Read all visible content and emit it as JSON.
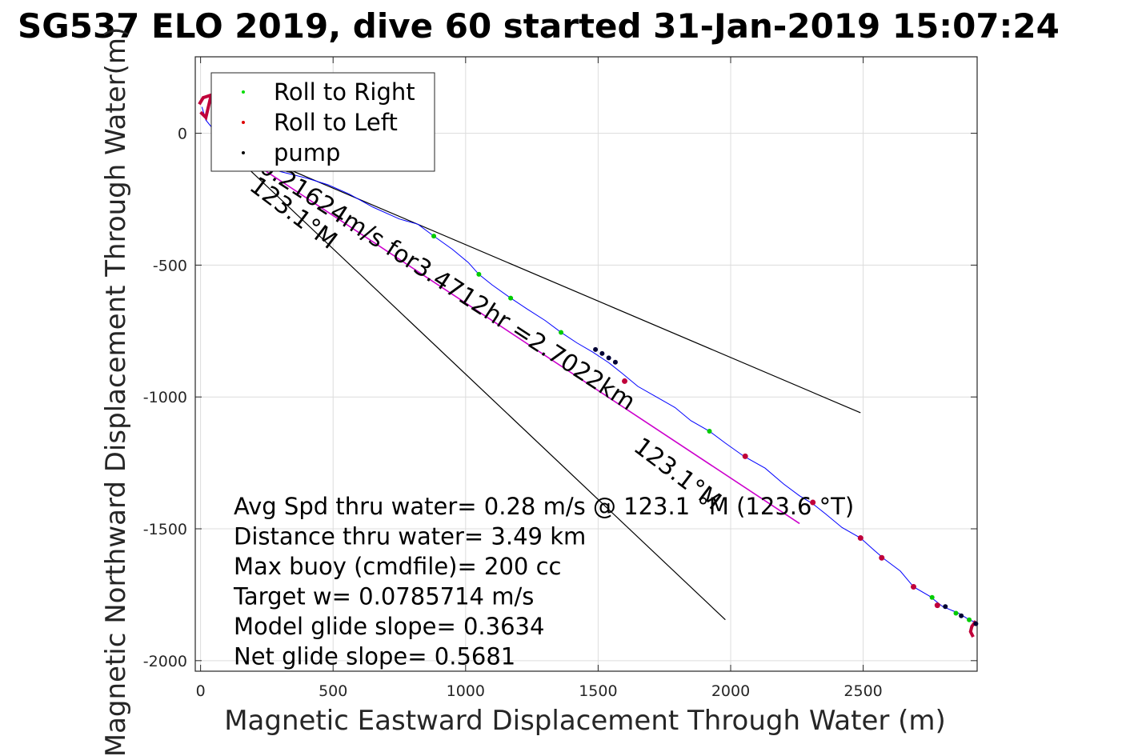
{
  "chart_data": {
    "type": "scatter",
    "title": "SG537 ELO 2019, dive 60 started 31-Jan-2019 15:07:24",
    "xlabel": "Magnetic Eastward Displacement Through Water (m)",
    "ylabel": "Magnetic Northward Displacement Through Water(m)",
    "xlim": [
      -20,
      2930
    ],
    "ylim": [
      -2040,
      290
    ],
    "xticks": [
      0,
      500,
      1000,
      1500,
      2000,
      2500
    ],
    "yticks": [
      0,
      -500,
      -1000,
      -1500,
      -2000
    ],
    "grid": true,
    "legend_position": "top-left",
    "legend": [
      {
        "label": "Roll to Right",
        "color": "#00dd00"
      },
      {
        "label": "Roll to Left",
        "color": "#dd0000"
      },
      {
        "label": "pump",
        "color": "#000000"
      }
    ],
    "track": {
      "color": "#0000ff",
      "points": [
        [
          5,
          100
        ],
        [
          20,
          50
        ],
        [
          60,
          0
        ],
        [
          120,
          -40
        ],
        [
          200,
          -100
        ],
        [
          300,
          -145
        ],
        [
          400,
          -170
        ],
        [
          480,
          -195
        ],
        [
          560,
          -230
        ],
        [
          650,
          -280
        ],
        [
          750,
          -325
        ],
        [
          820,
          -345
        ],
        [
          880,
          -390
        ],
        [
          950,
          -440
        ],
        [
          1010,
          -490
        ],
        [
          1050,
          -535
        ],
        [
          1100,
          -575
        ],
        [
          1170,
          -625
        ],
        [
          1230,
          -665
        ],
        [
          1300,
          -710
        ],
        [
          1360,
          -755
        ],
        [
          1420,
          -795
        ],
        [
          1480,
          -830
        ],
        [
          1540,
          -870
        ],
        [
          1590,
          -910
        ],
        [
          1650,
          -960
        ],
        [
          1720,
          -1000
        ],
        [
          1790,
          -1040
        ],
        [
          1850,
          -1090
        ],
        [
          1920,
          -1130
        ],
        [
          1980,
          -1175
        ],
        [
          2050,
          -1225
        ],
        [
          2130,
          -1270
        ],
        [
          2200,
          -1330
        ],
        [
          2260,
          -1375
        ],
        [
          2310,
          -1405
        ],
        [
          2360,
          -1445
        ],
        [
          2420,
          -1495
        ],
        [
          2490,
          -1535
        ],
        [
          2540,
          -1580
        ],
        [
          2580,
          -1615
        ],
        [
          2640,
          -1660
        ],
        [
          2690,
          -1720
        ],
        [
          2750,
          -1755
        ],
        [
          2800,
          -1795
        ],
        [
          2860,
          -1820
        ],
        [
          2900,
          -1845
        ],
        [
          2925,
          -1855
        ]
      ]
    },
    "roll_right": [
      [
        880,
        -390
      ],
      [
        1050,
        -535
      ],
      [
        1170,
        -625
      ],
      [
        1360,
        -755
      ],
      [
        1920,
        -1130
      ],
      [
        2760,
        -1760
      ],
      [
        2850,
        -1820
      ],
      [
        2900,
        -1845
      ]
    ],
    "roll_left": [
      [
        1600,
        -940
      ],
      [
        2055,
        -1225
      ],
      [
        2310,
        -1400
      ],
      [
        2490,
        -1535
      ],
      [
        2570,
        -1610
      ],
      [
        2690,
        -1720
      ],
      [
        2780,
        -1790
      ]
    ],
    "pump": [
      [
        1490,
        -820
      ],
      [
        1515,
        -835
      ],
      [
        1540,
        -852
      ],
      [
        1565,
        -868
      ],
      [
        2810,
        -1795
      ],
      [
        2870,
        -1830
      ],
      [
        2925,
        -1860
      ]
    ],
    "left_loop": [
      [
        -5,
        110
      ],
      [
        10,
        135
      ],
      [
        40,
        145
      ],
      [
        20,
        60
      ],
      [
        0,
        80
      ]
    ],
    "end_hook": [
      [
        2925,
        -1850
      ],
      [
        2910,
        -1870
      ],
      [
        2905,
        -1890
      ],
      [
        2915,
        -1910
      ]
    ],
    "magenta_line": [
      [
        60,
        -20
      ],
      [
        2260,
        -1480
      ]
    ],
    "black_line_upper": [
      [
        60,
        -20
      ],
      [
        2490,
        -1060
      ]
    ],
    "black_line_lower": [
      [
        60,
        -20
      ],
      [
        1980,
        -1845
      ]
    ],
    "annotations": {
      "speed_text": "0.21624m/s for3.4712hr =2.7022km",
      "heading_upper": "123.1°M",
      "heading_lower": "123.1°M"
    },
    "stats": [
      "Avg Spd thru water=  0.28 m/s @ 123.1 °M (123.6 °T)",
      "Distance thru water=  3.49 km",
      "Max buoy (cmdfile)= 200 cc",
      "Target w= 0.0785714 m/s",
      "Model glide slope= 0.3634",
      "Net glide slope= 0.5681"
    ]
  }
}
